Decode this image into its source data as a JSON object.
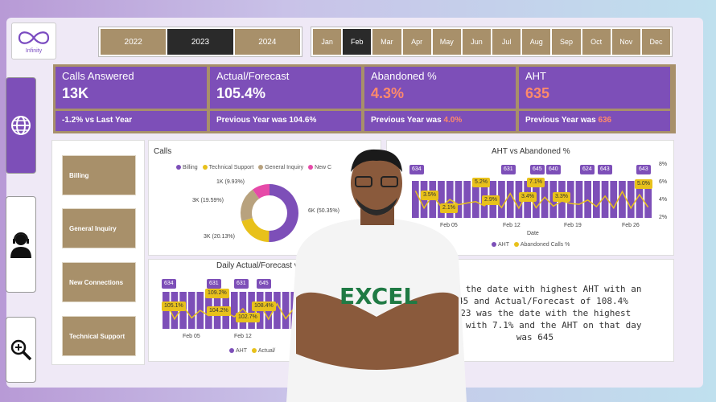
{
  "logo": {
    "text": "Infinity"
  },
  "years": [
    {
      "label": "2022",
      "selected": false
    },
    {
      "label": "2023",
      "selected": true
    },
    {
      "label": "2024",
      "selected": false
    }
  ],
  "months": [
    {
      "label": "Jan",
      "selected": false
    },
    {
      "label": "Feb",
      "selected": true
    },
    {
      "label": "Mar",
      "selected": false
    },
    {
      "label": "Apr",
      "selected": false
    },
    {
      "label": "May",
      "selected": false
    },
    {
      "label": "Jun",
      "selected": false
    },
    {
      "label": "Jul",
      "selected": false
    },
    {
      "label": "Aug",
      "selected": false
    },
    {
      "label": "Sep",
      "selected": false
    },
    {
      "label": "Oct",
      "selected": false
    },
    {
      "label": "Nov",
      "selected": false
    },
    {
      "label": "Dec",
      "selected": false
    }
  ],
  "kpis": [
    {
      "title": "Calls Answered",
      "value": "13K",
      "sub": "-1.2% vs Last Year",
      "sub_value": "",
      "accent": false
    },
    {
      "title": "Actual/Forecast",
      "value": "105.4%",
      "sub": "Previous Year was 104.6%",
      "sub_value": "",
      "accent": false
    },
    {
      "title": "Abandoned %",
      "value": "4.3%",
      "sub": "Previous Year was ",
      "sub_value": "4.0%",
      "accent": true
    },
    {
      "title": "AHT",
      "value": "635",
      "sub": "Previous Year was ",
      "sub_value": "636",
      "accent": true
    }
  ],
  "side_icons": [
    "globe-icon",
    "headset-agent-icon",
    "zoom-in-icon"
  ],
  "categories": [
    "Billing",
    "General Inquiry",
    "New Connections",
    "Technical Support"
  ],
  "colors": {
    "purple": "#7d4fb8",
    "gold": "#a8906a",
    "yellow": "#e8c11b",
    "pink": "#e64aa8",
    "tan": "#b8a27e"
  },
  "calls_chart": {
    "title": "Calls",
    "legend": [
      "Billing",
      "Technical Support",
      "General Inquiry",
      "New C"
    ],
    "slices": [
      {
        "label": "6K (50.35%)",
        "value": 50.35,
        "color": "#7d4fb8"
      },
      {
        "label": "3K (20.13%)",
        "value": 20.13,
        "color": "#e8c11b"
      },
      {
        "label": "3K (19.59%)",
        "value": 19.59,
        "color": "#b8a27e"
      },
      {
        "label": "1K (9.93%)",
        "value": 9.93,
        "color": "#e64aa8"
      }
    ]
  },
  "aht_chart": {
    "title": "AHT vs Abandoned %",
    "xlabel": "Date",
    "x_ticks": [
      "Feb 05",
      "Feb 12",
      "Feb 19",
      "Feb 26"
    ],
    "y_right_ticks": [
      "8%",
      "6%",
      "4%",
      "2%"
    ],
    "legend": [
      "AHT",
      "Abandoned Calls %"
    ],
    "aht_labels": [
      "634",
      "631",
      "645",
      "640",
      "624",
      "643",
      "643"
    ],
    "abandoned_labels": [
      "3.5%",
      "2.1%",
      "5.2%",
      "2.9%",
      "7.1%",
      "3.4%",
      "3.3%",
      "5.0%"
    ]
  },
  "daily_chart": {
    "title": "Daily Actual/Forecast v",
    "x_ticks": [
      "Feb 05",
      "Feb 12"
    ],
    "legend": [
      "AHT",
      "Actual/"
    ],
    "aht_labels": [
      "634",
      "631",
      "631",
      "645"
    ],
    "af_labels": [
      "105.1%",
      "109.2%",
      "104.2%",
      "102.7%",
      "108.4%"
    ]
  },
  "insight": {
    "lines": [
      "23 was the date with highest AHT with an",
      "f 645 and Actual/Forecast of 108.4%",
      "Feb-23 was the date with the highest",
      "alls % with 7.1% and the AHT on that day",
      "was 645"
    ]
  },
  "person": {
    "shirt_text": "EXCEL"
  }
}
